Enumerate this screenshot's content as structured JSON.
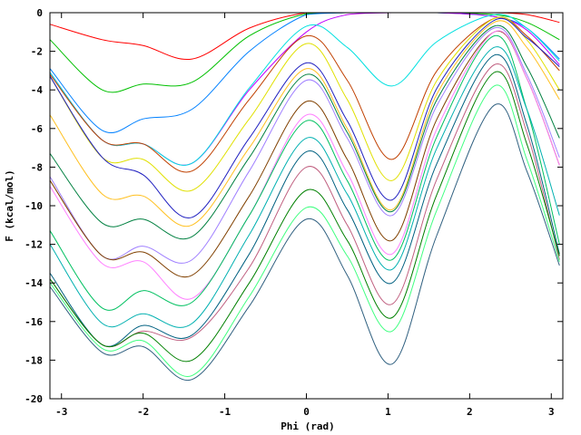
{
  "chart_data": {
    "type": "line",
    "title": "",
    "xlabel": "Phi (rad)",
    "ylabel": "F (kcal/mol)",
    "xlim": [
      -3.1416,
      3.1416
    ],
    "ylim": [
      -20,
      0
    ],
    "xticks": [
      -3,
      -2,
      -1,
      0,
      1,
      2,
      3
    ],
    "yticks": [
      0,
      -2,
      -4,
      -6,
      -8,
      -10,
      -12,
      -14,
      -16,
      -18,
      -20
    ],
    "grid": false,
    "legend": "none",
    "x": [
      -3.14,
      -2.5,
      -2.0,
      -1.4,
      -0.7,
      0,
      0.5,
      1.05,
      1.6,
      2.3,
      2.7,
      3.1
    ],
    "series": [
      {
        "color": "#ff0000",
        "values": [
          -0.6,
          -1.4,
          -1.7,
          -2.4,
          -0.8,
          0,
          0,
          0,
          0,
          0,
          -0.1,
          -0.5
        ]
      },
      {
        "color": "#00c000",
        "values": [
          -1.4,
          -4.0,
          -3.7,
          -3.6,
          -1.2,
          -0.05,
          0,
          0,
          0,
          -0.1,
          -0.5,
          -1.4
        ]
      },
      {
        "color": "#0080ff",
        "values": [
          -2.9,
          -6.1,
          -5.5,
          -5.0,
          -2.0,
          -0.1,
          0,
          0,
          0,
          -0.2,
          -0.8,
          -2.4
        ]
      },
      {
        "color": "#c000ff",
        "values": [
          -3.1,
          -6.6,
          -6.8,
          -7.8,
          -4.0,
          -1.0,
          -0.1,
          0,
          0,
          -0.2,
          -0.9,
          -2.7
        ]
      },
      {
        "color": "#00e0e0",
        "values": [
          -3.1,
          -6.6,
          -6.8,
          -7.8,
          -3.9,
          -0.7,
          -1.8,
          -3.8,
          -1.5,
          -0.1,
          -0.8,
          -2.5
        ]
      },
      {
        "color": "#c04000",
        "values": [
          -3.2,
          -6.6,
          -6.8,
          -8.2,
          -4.5,
          -1.2,
          -3.5,
          -7.6,
          -3.0,
          -0.3,
          -1.2,
          -3.0
        ]
      },
      {
        "color": "#e0e000",
        "values": [
          -3.3,
          -7.5,
          -7.6,
          -9.2,
          -5.5,
          -1.6,
          -4.5,
          -8.7,
          -3.5,
          -0.3,
          -1.4,
          -4.0
        ]
      },
      {
        "color": "#2020c0",
        "values": [
          -3.3,
          -7.5,
          -8.4,
          -10.6,
          -6.5,
          -2.6,
          -5.6,
          -9.7,
          -3.9,
          -0.4,
          -1.3,
          -2.8
        ]
      },
      {
        "color": "#ffc020",
        "values": [
          -5.3,
          -9.4,
          -9.5,
          -11.0,
          -7.0,
          -2.9,
          -6.0,
          -10.2,
          -4.2,
          -0.5,
          -1.8,
          -4.5
        ]
      },
      {
        "color": "#008040",
        "values": [
          -7.3,
          -10.9,
          -10.7,
          -11.6,
          -7.5,
          -3.2,
          -6.2,
          -10.3,
          -4.5,
          -0.7,
          -2.8,
          -6.5
        ]
      },
      {
        "color": "#a080ff",
        "values": [
          -8.5,
          -12.6,
          -12.1,
          -12.8,
          -8.2,
          -3.5,
          -6.5,
          -10.5,
          -4.8,
          -0.8,
          -3.2,
          -7.5
        ]
      },
      {
        "color": "#804000",
        "values": [
          -8.7,
          -12.6,
          -12.4,
          -13.6,
          -9.5,
          -4.6,
          -7.6,
          -11.8,
          -5.5,
          -1.0,
          -3.4,
          -7.9
        ]
      },
      {
        "color": "#ff80ff",
        "values": [
          -9.0,
          -13.0,
          -12.9,
          -14.8,
          -10.5,
          -5.3,
          -8.3,
          -12.5,
          -6.0,
          -1.0,
          -3.4,
          -7.9
        ]
      },
      {
        "color": "#00c060",
        "values": [
          -11.3,
          -15.3,
          -14.4,
          -15.0,
          -10.5,
          -5.6,
          -8.7,
          -12.8,
          -6.4,
          -1.2,
          -5.0,
          -12.0
        ]
      },
      {
        "color": "#00b0b0",
        "values": [
          -12.0,
          -16.1,
          -15.6,
          -16.1,
          -11.5,
          -6.5,
          -9.4,
          -13.3,
          -7.0,
          -1.8,
          -5.0,
          -10.5
        ]
      },
      {
        "color": "#006080",
        "values": [
          -13.5,
          -17.2,
          -16.2,
          -16.7,
          -12.5,
          -7.2,
          -10.2,
          -14.0,
          -7.8,
          -2.2,
          -5.8,
          -12.5
        ]
      },
      {
        "color": "#c06080",
        "values": [
          -13.8,
          -17.2,
          -16.5,
          -16.8,
          -13.2,
          -8.0,
          -11.0,
          -15.1,
          -8.6,
          -2.7,
          -6.2,
          -12.8
        ]
      },
      {
        "color": "#008000",
        "values": [
          -13.8,
          -17.2,
          -16.6,
          -18.0,
          -14.0,
          -9.2,
          -11.8,
          -15.8,
          -9.4,
          -3.1,
          -6.8,
          -12.6
        ]
      },
      {
        "color": "#40ff80",
        "values": [
          -14.0,
          -17.4,
          -17.0,
          -18.8,
          -14.7,
          -10.1,
          -12.6,
          -16.5,
          -10.2,
          -3.8,
          -7.6,
          -12.9
        ]
      },
      {
        "color": "#306080",
        "values": [
          -14.2,
          -17.6,
          -17.3,
          -19.0,
          -15.2,
          -10.7,
          -13.6,
          -18.2,
          -11.5,
          -4.8,
          -8.2,
          -13.1
        ]
      }
    ]
  }
}
